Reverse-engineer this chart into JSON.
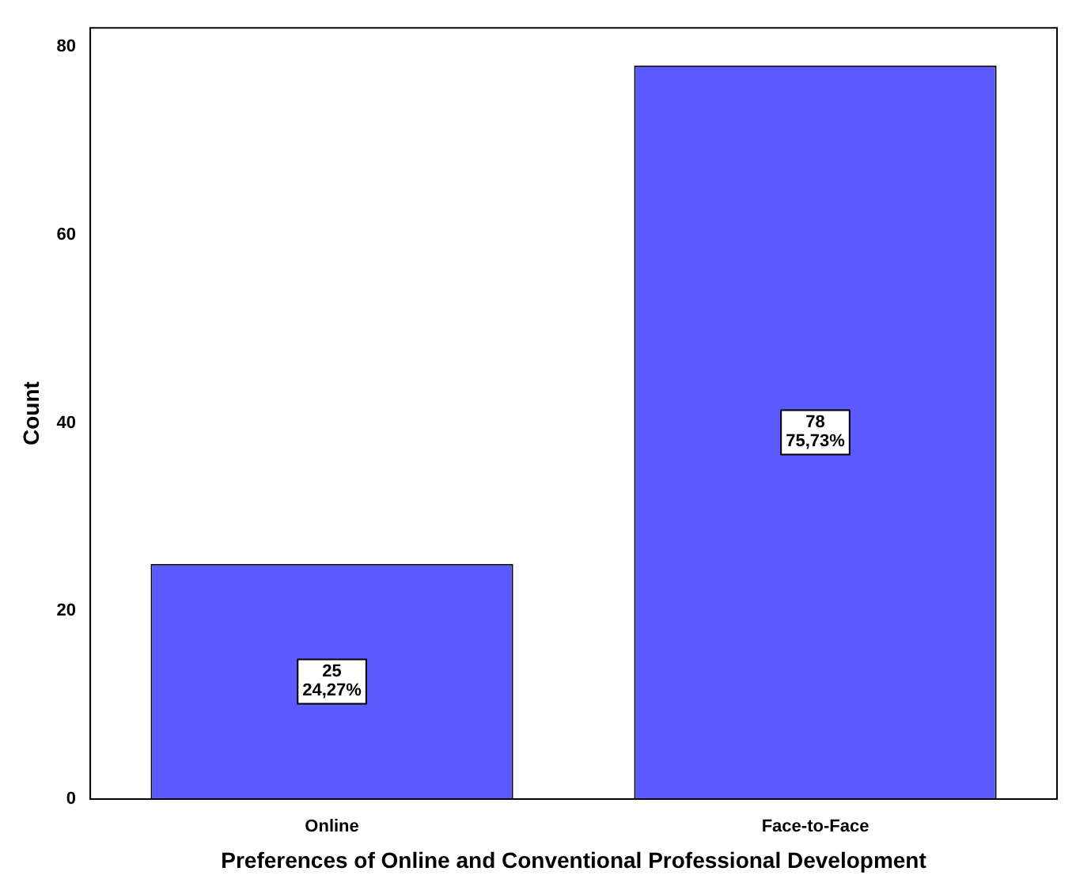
{
  "chart_data": {
    "type": "bar",
    "xlabel": "Preferences of Online and Conventional Professional Development",
    "ylabel": "Count",
    "categories": [
      "Online",
      "Face-to-Face"
    ],
    "values": [
      25,
      78
    ],
    "color": "#5a5aff",
    "value_labels": [
      "25\n24,27%",
      "78\n75,73%"
    ],
    "ylim": [
      0,
      82
    ],
    "yticks": [
      0,
      20,
      40,
      60,
      80
    ],
    "grid": false,
    "legend": false
  }
}
